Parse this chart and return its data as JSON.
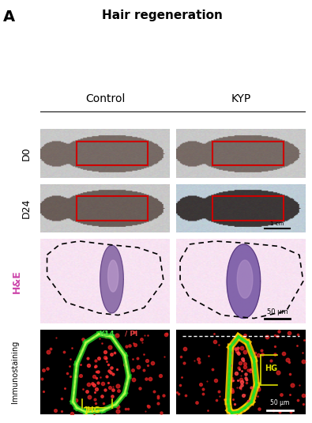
{
  "title": "Hair regeneration",
  "panel_label": "A",
  "col_labels": [
    "Control",
    "KYP"
  ],
  "row_labels_photos": [
    "D0",
    "D24"
  ],
  "row_label_he": "H&E",
  "row_label_immuno": "Immunostaining",
  "scale_bar_1cm": "1 cm",
  "scale_bar_50um_he": "50 μm",
  "scale_bar_50um_immuno": "50 μm",
  "bg_color": "#ffffff",
  "title_fontsize": 11,
  "col_label_fontsize": 10,
  "row_label_fontsize": 9,
  "panel_label_fontsize": 14,
  "red_box_color": "#cc0000",
  "he_label_color": "#cc44aa",
  "immuno_k14_color": "#44dd44",
  "immuno_pi_color": "#dd4444",
  "hg_label_color": "#dddd00",
  "follicle_color": "#8060a0",
  "follicle_kyp_color": "#7050a0"
}
